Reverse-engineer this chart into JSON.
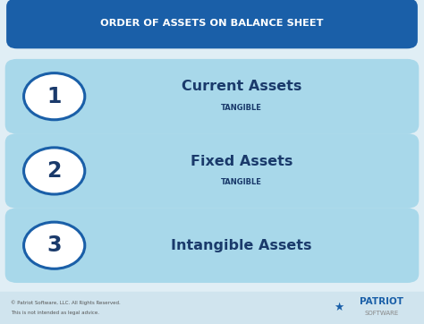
{
  "bg_color": "#e0eef5",
  "footer_bg": "#d0e4ee",
  "title_text": "ORDER OF ASSETS ON BALANCE SHEET",
  "title_bg": "#1a5fa8",
  "title_text_color": "#ffffff",
  "rows": [
    {
      "number": "1",
      "main_text": "Current Assets",
      "sub_text": "TANGIBLE",
      "bar_color": "#a8d8ea",
      "circle_bg": "#ffffff",
      "circle_border": "#1a5fa8",
      "number_color": "#1a3a6b"
    },
    {
      "number": "2",
      "main_text": "Fixed Assets",
      "sub_text": "TANGIBLE",
      "bar_color": "#a8d8ea",
      "circle_bg": "#ffffff",
      "circle_border": "#1a5fa8",
      "number_color": "#1a3a6b"
    },
    {
      "number": "3",
      "main_text": "Intangible Assets",
      "sub_text": "",
      "bar_color": "#a8d8ea",
      "circle_bg": "#ffffff",
      "circle_border": "#1a5fa8",
      "number_color": "#1a3a6b"
    }
  ],
  "footer_left_line1": "© Patriot Software, LLC. All Rights Reserved.",
  "footer_left_line2": "This is not intended as legal advice.",
  "footer_right_line1": "PATRIOT",
  "footer_right_line2": "SOFTWARE",
  "main_text_color": "#1a3a6b",
  "sub_text_color": "#1a3a6b"
}
